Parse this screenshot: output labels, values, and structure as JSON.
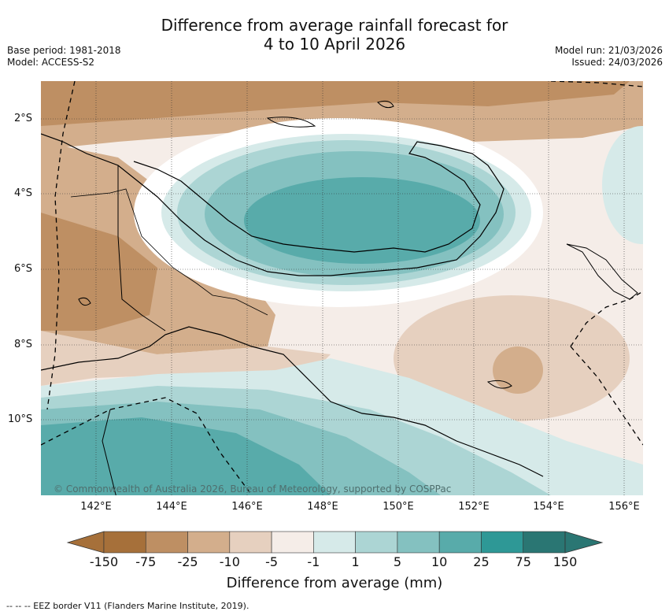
{
  "title_line1": "Difference from average rainfall forecast for",
  "title_line2": "4 to 10 April 2026",
  "meta_left": {
    "base_period": "Base period: 1981-2018",
    "model": "Model: ACCESS-S2"
  },
  "meta_right": {
    "model_run": "Model run: 21/03/2026",
    "issued": "Issued: 24/03/2026"
  },
  "lat_labels": [
    "2°S",
    "4°S",
    "6°S",
    "8°S",
    "10°S"
  ],
  "lon_labels": [
    "142°E",
    "144°E",
    "146°E",
    "148°E",
    "150°E",
    "152°E",
    "154°E",
    "156°E"
  ],
  "copyright": "© Commonwealth of Australia 2026, Bureau of Meteorology, supported by COSPPac",
  "colorbar": {
    "title": "Difference from average (mm)",
    "ticks": [
      "-150",
      "-75",
      "-25",
      "-10",
      "-5",
      "-1",
      "1",
      "5",
      "10",
      "25",
      "75",
      "150"
    ],
    "colors": [
      "#a6703a",
      "#be8f63",
      "#d3ae8c",
      "#e6d0bf",
      "#f5ede8",
      "#ffffff",
      "#d6eae9",
      "#acd5d4",
      "#84c1c0",
      "#58abaa",
      "#2e9896",
      "#2a7673"
    ]
  },
  "footnote": "--  --  -- EEZ border V11 (Flanders Marine Institute, 2019)."
}
